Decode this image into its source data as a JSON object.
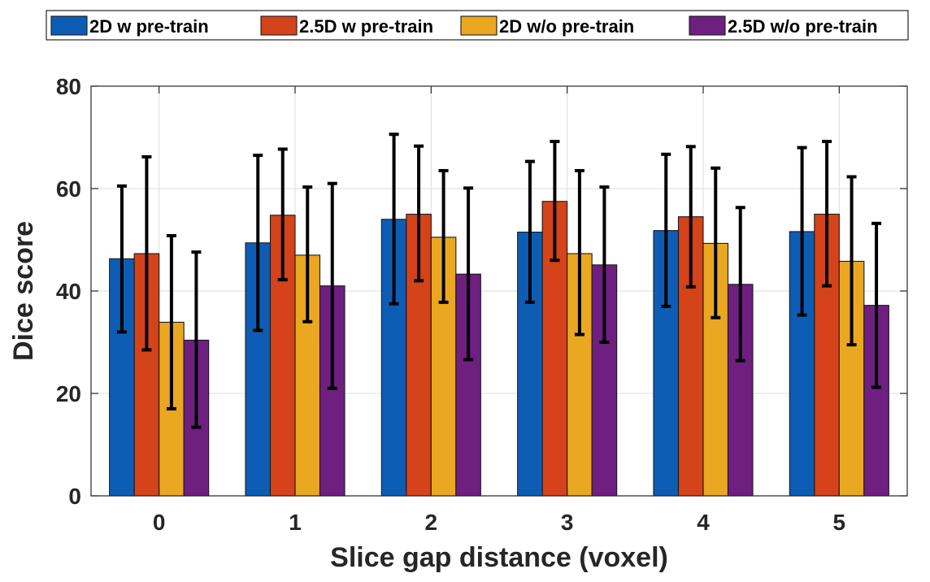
{
  "chart_data": {
    "type": "bar",
    "title": "",
    "xlabel": "Slice gap distance (voxel)",
    "ylabel": "Dice score",
    "ylim": [
      0,
      80
    ],
    "yticks": [
      0,
      20,
      40,
      60,
      80
    ],
    "grid": true,
    "legend_position": "top",
    "categories": [
      "0",
      "1",
      "2",
      "3",
      "4",
      "5"
    ],
    "series": [
      {
        "name": "2D w pre-train",
        "color": "#0E5DB5",
        "values": [
          46.3,
          49.4,
          54.0,
          51.5,
          51.8,
          51.6
        ],
        "error_low": [
          32.0,
          32.3,
          37.5,
          37.8,
          37.0,
          35.3
        ],
        "error_high": [
          60.5,
          66.5,
          70.6,
          65.3,
          66.7,
          68.0
        ]
      },
      {
        "name": "2.5D w pre-train",
        "color": "#D4431A",
        "values": [
          47.3,
          54.8,
          55.0,
          57.5,
          54.5,
          55.0
        ],
        "error_low": [
          28.5,
          42.2,
          42.0,
          46.0,
          40.8,
          41.0
        ],
        "error_high": [
          66.2,
          67.7,
          68.3,
          69.2,
          68.2,
          69.2
        ]
      },
      {
        "name": "2D w/o pre-train",
        "color": "#EAA721",
        "values": [
          33.9,
          47.0,
          50.5,
          47.3,
          49.3,
          45.8
        ],
        "error_low": [
          17.0,
          34.0,
          37.8,
          31.5,
          34.8,
          29.5
        ],
        "error_high": [
          50.8,
          60.3,
          63.5,
          63.5,
          64.0,
          62.3
        ]
      },
      {
        "name": "2.5D w/o pre-train",
        "color": "#6E1F80",
        "values": [
          30.4,
          41.0,
          43.3,
          45.1,
          41.3,
          37.2
        ],
        "error_low": [
          13.4,
          21.0,
          26.6,
          30.0,
          26.4,
          21.2
        ],
        "error_high": [
          47.6,
          61.0,
          60.1,
          60.3,
          56.3,
          53.2
        ]
      }
    ]
  }
}
